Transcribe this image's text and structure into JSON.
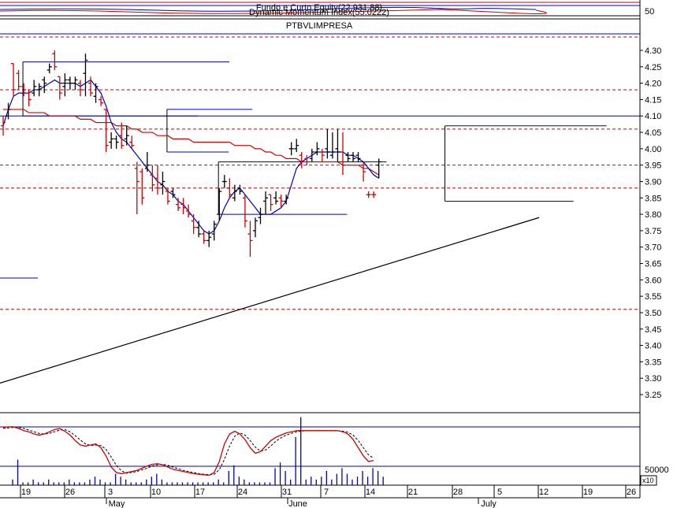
{
  "chart_data": {
    "type": "bar",
    "symbol": "PTBVLIMPRESA",
    "indicators": {
      "top_label_1": "Fundo e Curto Equity(22,931.88)",
      "top_label_2": "Dynamic Momentum Index(55.0222)",
      "top_level": "50"
    },
    "volume_label": "50000",
    "volume_multiplier": "x10",
    "ylim": [
      3.18,
      4.36
    ],
    "yticks": [
      "4.30",
      "4.25",
      "4.20",
      "4.15",
      "4.10",
      "4.05",
      "4.00",
      "3.95",
      "3.90",
      "3.85",
      "3.80",
      "3.75",
      "3.70",
      "3.65",
      "3.60",
      "3.55",
      "3.50",
      "3.45",
      "3.40",
      "3.35",
      "3.30",
      "3.25"
    ],
    "x_day_labels": [
      "19",
      "26",
      "3",
      "10",
      "17",
      "24",
      "31",
      "7",
      "14",
      "21",
      "28",
      "5",
      "12",
      "19",
      "26"
    ],
    "x_month_labels": [
      "May",
      "June",
      "July"
    ],
    "horizontal_levels_blue": [
      4.1
    ],
    "horizontal_levels_red_dashed": [
      4.18,
      4.06,
      3.95,
      3.88,
      3.51
    ],
    "bars": [
      {
        "o": 4.07,
        "h": 4.1,
        "l": 4.04,
        "c": 4.08,
        "dir": "down"
      },
      {
        "o": 4.1,
        "h": 4.14,
        "l": 4.09,
        "c": 4.12,
        "dir": "up"
      },
      {
        "o": 4.26,
        "h": 4.26,
        "l": 4.16,
        "c": 4.18,
        "dir": "down"
      },
      {
        "o": 4.23,
        "h": 4.24,
        "l": 4.18,
        "c": 4.19,
        "dir": "down"
      },
      {
        "o": 4.19,
        "h": 4.2,
        "l": 4.16,
        "c": 4.18,
        "dir": "down"
      },
      {
        "o": 4.17,
        "h": 4.18,
        "l": 4.13,
        "c": 4.15,
        "dir": "down"
      },
      {
        "o": 4.17,
        "h": 4.21,
        "l": 4.16,
        "c": 4.19,
        "dir": "up"
      },
      {
        "o": 4.18,
        "h": 4.2,
        "l": 4.16,
        "c": 4.19,
        "dir": "up"
      },
      {
        "o": 4.21,
        "h": 4.22,
        "l": 4.17,
        "c": 4.2,
        "dir": "up"
      },
      {
        "o": 4.24,
        "h": 4.26,
        "l": 4.23,
        "c": 4.25,
        "dir": "up"
      },
      {
        "o": 4.29,
        "h": 4.3,
        "l": 4.24,
        "c": 4.25,
        "dir": "down"
      },
      {
        "o": 4.22,
        "h": 4.22,
        "l": 4.15,
        "c": 4.17,
        "dir": "down"
      },
      {
        "o": 4.19,
        "h": 4.23,
        "l": 4.16,
        "c": 4.21,
        "dir": "up"
      },
      {
        "o": 4.21,
        "h": 4.22,
        "l": 4.18,
        "c": 4.2,
        "dir": "up"
      },
      {
        "o": 4.2,
        "h": 4.22,
        "l": 4.18,
        "c": 4.21,
        "dir": "up"
      },
      {
        "o": 4.2,
        "h": 4.21,
        "l": 4.16,
        "c": 4.18,
        "dir": "down"
      },
      {
        "o": 4.23,
        "h": 4.29,
        "l": 4.16,
        "c": 4.27,
        "dir": "up"
      },
      {
        "o": 4.2,
        "h": 4.22,
        "l": 4.16,
        "c": 4.17,
        "dir": "down"
      },
      {
        "o": 4.16,
        "h": 4.2,
        "l": 4.14,
        "c": 4.19,
        "dir": "up"
      },
      {
        "o": 4.15,
        "h": 4.16,
        "l": 4.13,
        "c": 4.14,
        "dir": "down"
      },
      {
        "o": 4.12,
        "h": 4.12,
        "l": 3.99,
        "c": 4.01,
        "dir": "down"
      },
      {
        "o": 4.02,
        "h": 4.05,
        "l": 4.0,
        "c": 4.03,
        "dir": "up"
      },
      {
        "o": 4.03,
        "h": 4.04,
        "l": 4.0,
        "c": 4.02,
        "dir": "up"
      },
      {
        "o": 4.04,
        "h": 4.08,
        "l": 4.0,
        "c": 4.01,
        "dir": "down"
      },
      {
        "o": 4.03,
        "h": 4.07,
        "l": 4.01,
        "c": 4.04,
        "dir": "up"
      },
      {
        "o": 4.02,
        "h": 4.04,
        "l": 4.0,
        "c": 4.01,
        "dir": "down"
      },
      {
        "o": 3.94,
        "h": 3.96,
        "l": 3.8,
        "c": 3.9,
        "dir": "down"
      },
      {
        "o": 3.93,
        "h": 3.94,
        "l": 3.83,
        "c": 3.85,
        "dir": "down"
      },
      {
        "o": 3.94,
        "h": 3.99,
        "l": 3.93,
        "c": 3.95,
        "dir": "up"
      },
      {
        "o": 3.92,
        "h": 3.95,
        "l": 3.87,
        "c": 3.89,
        "dir": "down"
      },
      {
        "o": 3.91,
        "h": 3.95,
        "l": 3.86,
        "c": 3.88,
        "dir": "down"
      },
      {
        "o": 3.89,
        "h": 3.93,
        "l": 3.86,
        "c": 3.9,
        "dir": "up"
      },
      {
        "o": 3.87,
        "h": 3.88,
        "l": 3.83,
        "c": 3.84,
        "dir": "down"
      },
      {
        "o": 3.87,
        "h": 3.88,
        "l": 3.85,
        "c": 3.86,
        "dir": "up"
      },
      {
        "o": 3.83,
        "h": 3.85,
        "l": 3.81,
        "c": 3.82,
        "dir": "down"
      },
      {
        "o": 3.83,
        "h": 3.85,
        "l": 3.8,
        "c": 3.82,
        "dir": "down"
      },
      {
        "o": 3.81,
        "h": 3.83,
        "l": 3.79,
        "c": 3.8,
        "dir": "down"
      },
      {
        "o": 3.78,
        "h": 3.8,
        "l": 3.74,
        "c": 3.76,
        "dir": "down"
      },
      {
        "o": 3.76,
        "h": 3.78,
        "l": 3.73,
        "c": 3.74,
        "dir": "up"
      },
      {
        "o": 3.74,
        "h": 3.75,
        "l": 3.71,
        "c": 3.72,
        "dir": "down"
      },
      {
        "o": 3.72,
        "h": 3.75,
        "l": 3.7,
        "c": 3.73,
        "dir": "up"
      },
      {
        "o": 3.74,
        "h": 3.78,
        "l": 3.72,
        "c": 3.77,
        "dir": "up"
      },
      {
        "o": 3.8,
        "h": 3.88,
        "l": 3.78,
        "c": 3.87,
        "dir": "up"
      },
      {
        "o": 3.9,
        "h": 3.92,
        "l": 3.88,
        "c": 3.9,
        "dir": "up"
      },
      {
        "o": 3.88,
        "h": 3.91,
        "l": 3.85,
        "c": 3.86,
        "dir": "down"
      },
      {
        "o": 3.85,
        "h": 3.89,
        "l": 3.84,
        "c": 3.87,
        "dir": "up"
      },
      {
        "o": 3.88,
        "h": 3.89,
        "l": 3.86,
        "c": 3.87,
        "dir": "up"
      },
      {
        "o": 3.85,
        "h": 3.86,
        "l": 3.76,
        "c": 3.78,
        "dir": "down"
      },
      {
        "o": 3.74,
        "h": 3.78,
        "l": 3.67,
        "c": 3.72,
        "dir": "down"
      },
      {
        "o": 3.75,
        "h": 3.79,
        "l": 3.73,
        "c": 3.78,
        "dir": "up"
      },
      {
        "o": 3.79,
        "h": 3.82,
        "l": 3.77,
        "c": 3.8,
        "dir": "up"
      },
      {
        "o": 3.84,
        "h": 3.87,
        "l": 3.8,
        "c": 3.85,
        "dir": "up"
      },
      {
        "o": 3.86,
        "h": 3.86,
        "l": 3.81,
        "c": 3.83,
        "dir": "down"
      },
      {
        "o": 3.85,
        "h": 3.87,
        "l": 3.83,
        "c": 3.84,
        "dir": "up"
      },
      {
        "o": 3.85,
        "h": 3.86,
        "l": 3.82,
        "c": 3.84,
        "dir": "down"
      },
      {
        "o": 3.84,
        "h": 3.86,
        "l": 3.83,
        "c": 3.85,
        "dir": "up"
      },
      {
        "o": 4.0,
        "h": 4.02,
        "l": 3.98,
        "c": 4.0,
        "dir": "up"
      },
      {
        "o": 4.0,
        "h": 4.03,
        "l": 3.99,
        "c": 4.01,
        "dir": "up"
      },
      {
        "o": 3.98,
        "h": 3.99,
        "l": 3.94,
        "c": 3.96,
        "dir": "down"
      },
      {
        "o": 3.97,
        "h": 3.98,
        "l": 3.95,
        "c": 3.96,
        "dir": "down"
      },
      {
        "o": 3.97,
        "h": 4.0,
        "l": 3.96,
        "c": 3.99,
        "dir": "up"
      },
      {
        "o": 3.99,
        "h": 4.02,
        "l": 3.98,
        "c": 4.0,
        "dir": "up"
      },
      {
        "o": 3.99,
        "h": 4.0,
        "l": 3.96,
        "c": 3.98,
        "dir": "down"
      },
      {
        "o": 4.0,
        "h": 4.06,
        "l": 3.97,
        "c": 3.99,
        "dir": "up"
      },
      {
        "o": 3.98,
        "h": 4.05,
        "l": 3.97,
        "c": 3.99,
        "dir": "up"
      },
      {
        "o": 4.0,
        "h": 4.06,
        "l": 3.96,
        "c": 3.99,
        "dir": "up"
      },
      {
        "o": 3.96,
        "h": 4.05,
        "l": 3.92,
        "c": 3.95,
        "dir": "down"
      },
      {
        "o": 3.98,
        "h": 3.99,
        "l": 3.96,
        "c": 3.97,
        "dir": "up"
      },
      {
        "o": 3.98,
        "h": 3.99,
        "l": 3.96,
        "c": 3.97,
        "dir": "up"
      },
      {
        "o": 3.98,
        "h": 3.99,
        "l": 3.96,
        "c": 3.97,
        "dir": "up"
      },
      {
        "o": 3.95,
        "h": 3.96,
        "l": 3.9,
        "c": 3.93,
        "dir": "down"
      },
      {
        "o": 3.86,
        "h": 3.87,
        "l": 3.85,
        "c": 3.86,
        "dir": "down"
      },
      {
        "o": 3.86,
        "h": 3.87,
        "l": 3.85,
        "c": 3.86,
        "dir": "down"
      },
      {
        "o": 3.95,
        "h": 3.97,
        "l": 3.91,
        "c": 3.96,
        "dir": "up"
      }
    ],
    "short_ma": [
      4.07,
      4.12,
      4.16,
      4.17,
      4.17,
      4.17,
      4.18,
      4.18,
      4.19,
      4.2,
      4.21,
      4.2,
      4.2,
      4.2,
      4.2,
      4.19,
      4.2,
      4.21,
      4.19,
      4.17,
      4.13,
      4.08,
      4.05,
      4.03,
      4.02,
      4.0,
      3.98,
      3.96,
      3.94,
      3.92,
      3.9,
      3.89,
      3.87,
      3.86,
      3.84,
      3.83,
      3.81,
      3.79,
      3.77,
      3.75,
      3.74,
      3.75,
      3.78,
      3.82,
      3.85,
      3.87,
      3.88,
      3.86,
      3.84,
      3.82,
      3.8,
      3.8,
      3.8,
      3.81,
      3.82,
      3.84,
      3.89,
      3.94,
      3.96,
      3.97,
      3.98,
      3.99,
      3.99,
      3.99,
      3.99,
      3.99,
      3.99,
      3.98,
      3.98,
      3.97,
      3.96,
      3.94,
      3.92,
      3.91
    ],
    "long_ma": [
      4.12,
      4.12,
      4.12,
      4.12,
      4.12,
      4.11,
      4.11,
      4.11,
      4.11,
      4.1,
      4.1,
      4.1,
      4.1,
      4.1,
      4.1,
      4.09,
      4.09,
      4.09,
      4.08,
      4.08,
      4.08,
      4.08,
      4.07,
      4.07,
      4.07,
      4.06,
      4.06,
      4.05,
      4.05,
      4.05,
      4.04,
      4.04,
      4.04,
      4.03,
      4.03,
      4.03,
      4.03,
      4.02,
      4.02,
      4.02,
      4.02,
      4.02,
      4.02,
      4.02,
      4.02,
      4.01,
      4.01,
      4.01,
      4.01,
      4.0,
      4.0,
      3.99,
      3.99,
      3.98,
      3.98,
      3.97,
      3.97,
      3.97,
      3.96,
      3.96,
      3.96,
      3.96,
      3.96,
      3.96,
      3.96,
      3.96,
      3.95,
      3.95,
      3.95,
      3.95,
      3.94,
      3.94,
      3.93,
      3.92
    ],
    "trend_line": {
      "start": 3.285,
      "end": 3.79
    },
    "boxes": [
      {
        "x0": 2,
        "x1": 36,
        "top": 4.265,
        "bottom": 4.1
      },
      {
        "x0": 30,
        "x1": 42,
        "top": 4.12,
        "bottom": 3.99
      },
      {
        "x0": 40,
        "x1": 65,
        "top": 3.96,
        "bottom": 3.8
      },
      {
        "x0": 84,
        "x1": 109,
        "top": 4.07,
        "bottom": 3.84
      }
    ],
    "stoch_k": [
      0.92,
      0.93,
      0.93,
      0.9,
      0.86,
      0.84,
      0.8,
      0.78,
      0.8,
      0.84,
      0.88,
      0.9,
      0.85,
      0.78,
      0.68,
      0.6,
      0.58,
      0.6,
      0.62,
      0.55,
      0.4,
      0.2,
      0.1,
      0.08,
      0.1,
      0.12,
      0.14,
      0.18,
      0.22,
      0.25,
      0.26,
      0.24,
      0.2,
      0.16,
      0.14,
      0.12,
      0.1,
      0.08,
      0.07,
      0.06,
      0.05,
      0.1,
      0.3,
      0.62,
      0.8,
      0.85,
      0.8,
      0.7,
      0.55,
      0.45,
      0.48,
      0.58,
      0.68,
      0.74,
      0.78,
      0.82,
      0.84,
      0.86,
      0.86,
      0.86,
      0.86,
      0.86,
      0.86,
      0.86,
      0.86,
      0.86,
      0.84,
      0.8,
      0.7,
      0.55,
      0.4,
      0.3,
      0.32
    ],
    "stoch_d": [
      0.9,
      0.91,
      0.92,
      0.92,
      0.9,
      0.87,
      0.84,
      0.81,
      0.8,
      0.81,
      0.84,
      0.87,
      0.88,
      0.84,
      0.77,
      0.69,
      0.62,
      0.59,
      0.6,
      0.59,
      0.52,
      0.38,
      0.23,
      0.13,
      0.09,
      0.1,
      0.12,
      0.15,
      0.18,
      0.22,
      0.24,
      0.25,
      0.23,
      0.2,
      0.17,
      0.14,
      0.12,
      0.1,
      0.08,
      0.07,
      0.06,
      0.07,
      0.15,
      0.34,
      0.58,
      0.76,
      0.82,
      0.78,
      0.68,
      0.56,
      0.49,
      0.51,
      0.58,
      0.67,
      0.73,
      0.78,
      0.81,
      0.84,
      0.85,
      0.86,
      0.86,
      0.86,
      0.86,
      0.86,
      0.86,
      0.86,
      0.85,
      0.83,
      0.78,
      0.68,
      0.55,
      0.42,
      0.36
    ],
    "volume": [
      0.2,
      0.9,
      0.1,
      0.1,
      0.2,
      0.1,
      0.1,
      0.2,
      0.1,
      0.1,
      0.1,
      0.2,
      0.1,
      0.1,
      0.1,
      0.2,
      0.3,
      0.2,
      0.1,
      0.1,
      0.4,
      0.3,
      0.2,
      0.1,
      0.1,
      0.1,
      0.2,
      0.3,
      0.4,
      0.2,
      0.1,
      0.1,
      0.1,
      0.1,
      0.1,
      0.1,
      0.1,
      0.1,
      0.1,
      0.1,
      0.2,
      0.1,
      0.5,
      0.7,
      0.3,
      0.2,
      0.1,
      0.1,
      0.1,
      0.1,
      0.1,
      0.6,
      0.8,
      0.5,
      0.2,
      1.7,
      2.4,
      0.2,
      0.3,
      0.2,
      0.3,
      0.5,
      0.2,
      0.4,
      0.6,
      0.4,
      0.2,
      0.3,
      0.5,
      0.3,
      0.6,
      0.5,
      0.3
    ]
  }
}
